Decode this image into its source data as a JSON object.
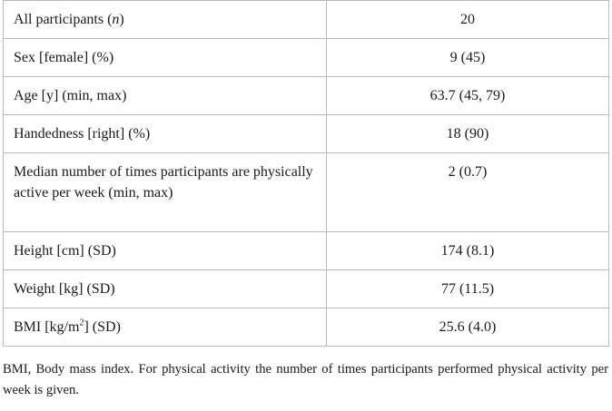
{
  "table": {
    "rows": [
      {
        "label_pre": "All participants (",
        "label_italic": "n",
        "label_post": ")",
        "value": "20"
      },
      {
        "label": "Sex [female] (%)",
        "value": "9 (45)"
      },
      {
        "label": "Age [y] (min, max)",
        "value": "63.7 (45, 79)"
      },
      {
        "label": "Handedness [right] (%)",
        "value": "18 (90)"
      },
      {
        "label": "Median number of times participants are physically active per week (min, max)",
        "value": "2 (0.7)"
      },
      {
        "label": "Height [cm] (SD)",
        "value": "174 (8.1)"
      },
      {
        "label": "Weight [kg] (SD)",
        "value": "77 (11.5)"
      },
      {
        "label_pre": "BMI [kg/m",
        "label_sup": "2",
        "label_post": "] (SD)",
        "value": "25.6 (4.0)"
      }
    ]
  },
  "caption": "BMI, Body mass index. For physical activity the number of times participants performed physical activity per week is given."
}
